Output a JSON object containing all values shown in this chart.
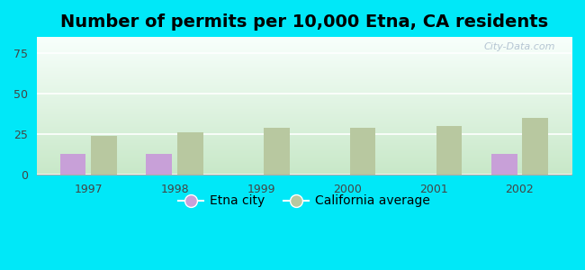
{
  "title": "Number of permits per 10,000 Etna, CA residents",
  "years": [
    1997,
    1998,
    1999,
    2000,
    2001,
    2002
  ],
  "etna_values": [
    13,
    13,
    null,
    null,
    null,
    13
  ],
  "ca_values": [
    24,
    26,
    29,
    29,
    30,
    35
  ],
  "etna_color": "#c8a0d8",
  "ca_color": "#b8c8a0",
  "background_outer": "#00e8f8",
  "ylim": [
    0,
    85
  ],
  "yticks": [
    0,
    25,
    50,
    75
  ],
  "bar_width": 0.3,
  "title_fontsize": 14,
  "legend_labels": [
    "Etna city",
    "California average"
  ],
  "watermark": "City-Data.com",
  "grad_bottom_color": "#c8e8c8",
  "grad_top_color": "#f8fffc"
}
